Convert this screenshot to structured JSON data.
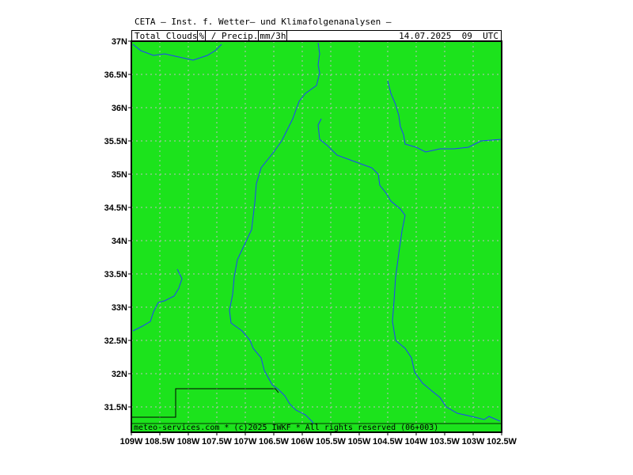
{
  "header": {
    "title": "CETA — Inst. f. Wetter— und Klimafolgenanalysen —",
    "variable1": "Total_Clouds",
    "unit1": "%",
    "separator": "_/_",
    "variable2": "Precip.",
    "unit2": "mm/3h",
    "datetime": "14.07.2025  09  UTC"
  },
  "map": {
    "fill_color": "#1ce31c",
    "grid_color": "#bfbfbf",
    "river_color": "#1f3fff",
    "border_color": "#000000",
    "lat_labels": [
      "37N",
      "36.5N",
      "36N",
      "35.5N",
      "35N",
      "34.5N",
      "34N",
      "33.5N",
      "33N",
      "32.5N",
      "32N",
      "31.5N"
    ],
    "lon_labels": [
      "109W",
      "108.5W",
      "108W",
      "107.5W",
      "107W",
      "106.5W",
      "106W",
      "105.5W",
      "105W",
      "104.5W",
      "104W",
      "103.5W",
      "103W",
      "102.5W"
    ]
  },
  "footer": {
    "text": "meteo-services.com * (c)2025 IWKF * All rights reserved (06+003)"
  }
}
